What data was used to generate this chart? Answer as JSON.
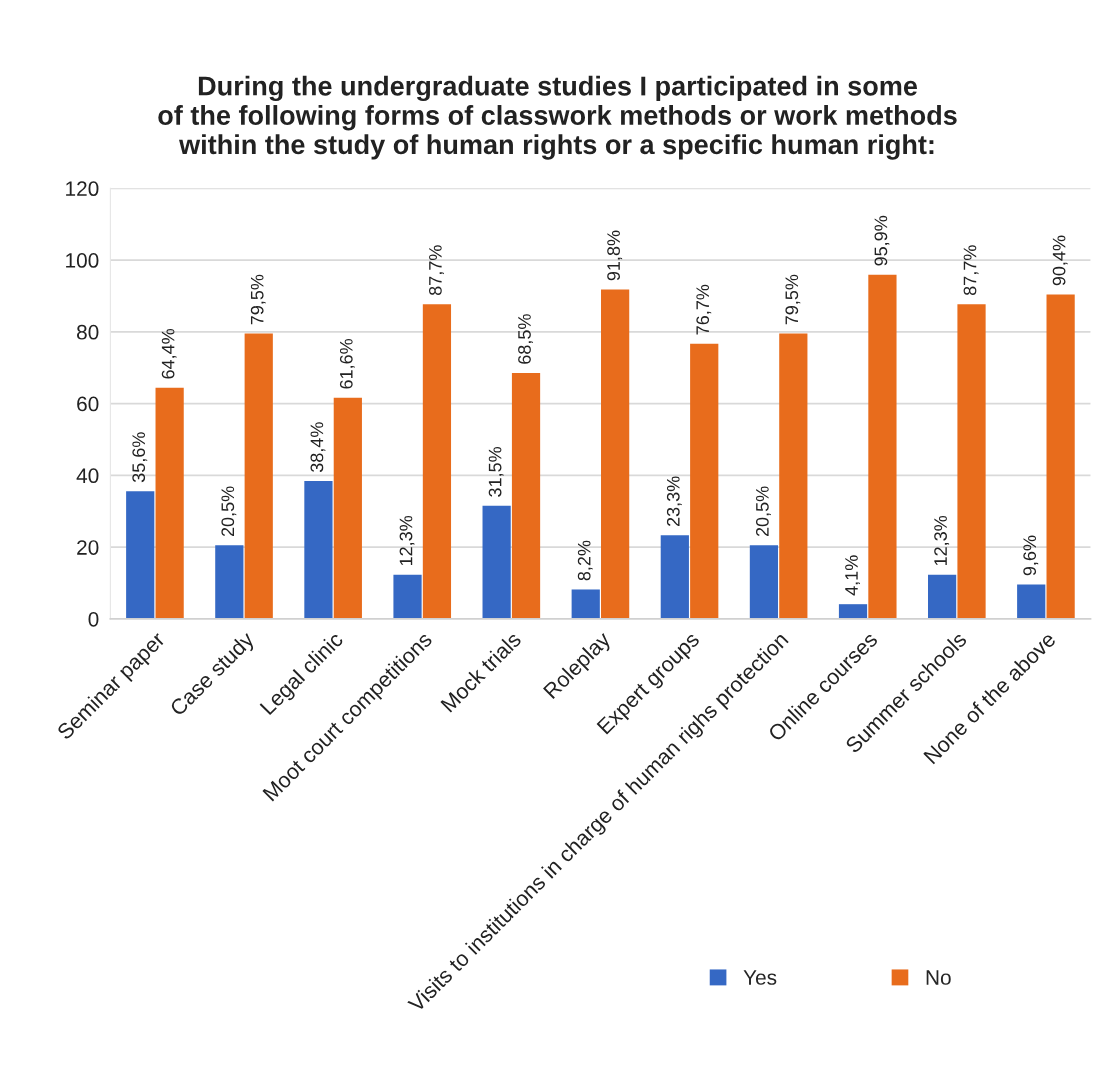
{
  "chart_data": {
    "type": "bar",
    "title": "During the undergraduate studies I participated in some\nof the following forms of classwork methods or work methods\nwithin the study of human rights or a specific human right:",
    "categories": [
      "Seminar paper",
      "Case study",
      "Legal clinic",
      "Moot court competitions",
      "Mock trials",
      "Roleplay",
      "Expert groups",
      "Visits to institutions in charge of human righs protection",
      "Online courses",
      "Summer schools",
      "None of the above"
    ],
    "series": [
      {
        "name": "Yes",
        "color": "#3568c4",
        "values": [
          35.6,
          20.5,
          38.4,
          12.3,
          31.5,
          8.2,
          23.3,
          20.5,
          4.1,
          12.3,
          9.6
        ],
        "value_labels": [
          "35,6%",
          "20,5%",
          "38,4%",
          "12,3%",
          "31,5%",
          "8,2%",
          "23,3%",
          "20,5%",
          "4,1%",
          "12,3%",
          "9,6%"
        ]
      },
      {
        "name": "No",
        "color": "#e86c1c",
        "values": [
          64.4,
          79.5,
          61.6,
          87.7,
          68.5,
          91.8,
          76.7,
          79.5,
          95.9,
          87.7,
          90.4
        ],
        "value_labels": [
          "64,4%",
          "79,5%",
          "61,6%",
          "87,7%",
          "68,5%",
          "91,8%",
          "76,7%",
          "79,5%",
          "95,9%",
          "87,7%",
          "90,4%"
        ]
      }
    ],
    "ylim": [
      0,
      120
    ],
    "yticks": [
      0,
      20,
      40,
      60,
      80,
      100,
      120
    ],
    "grid": "y",
    "legend": "bottom"
  }
}
